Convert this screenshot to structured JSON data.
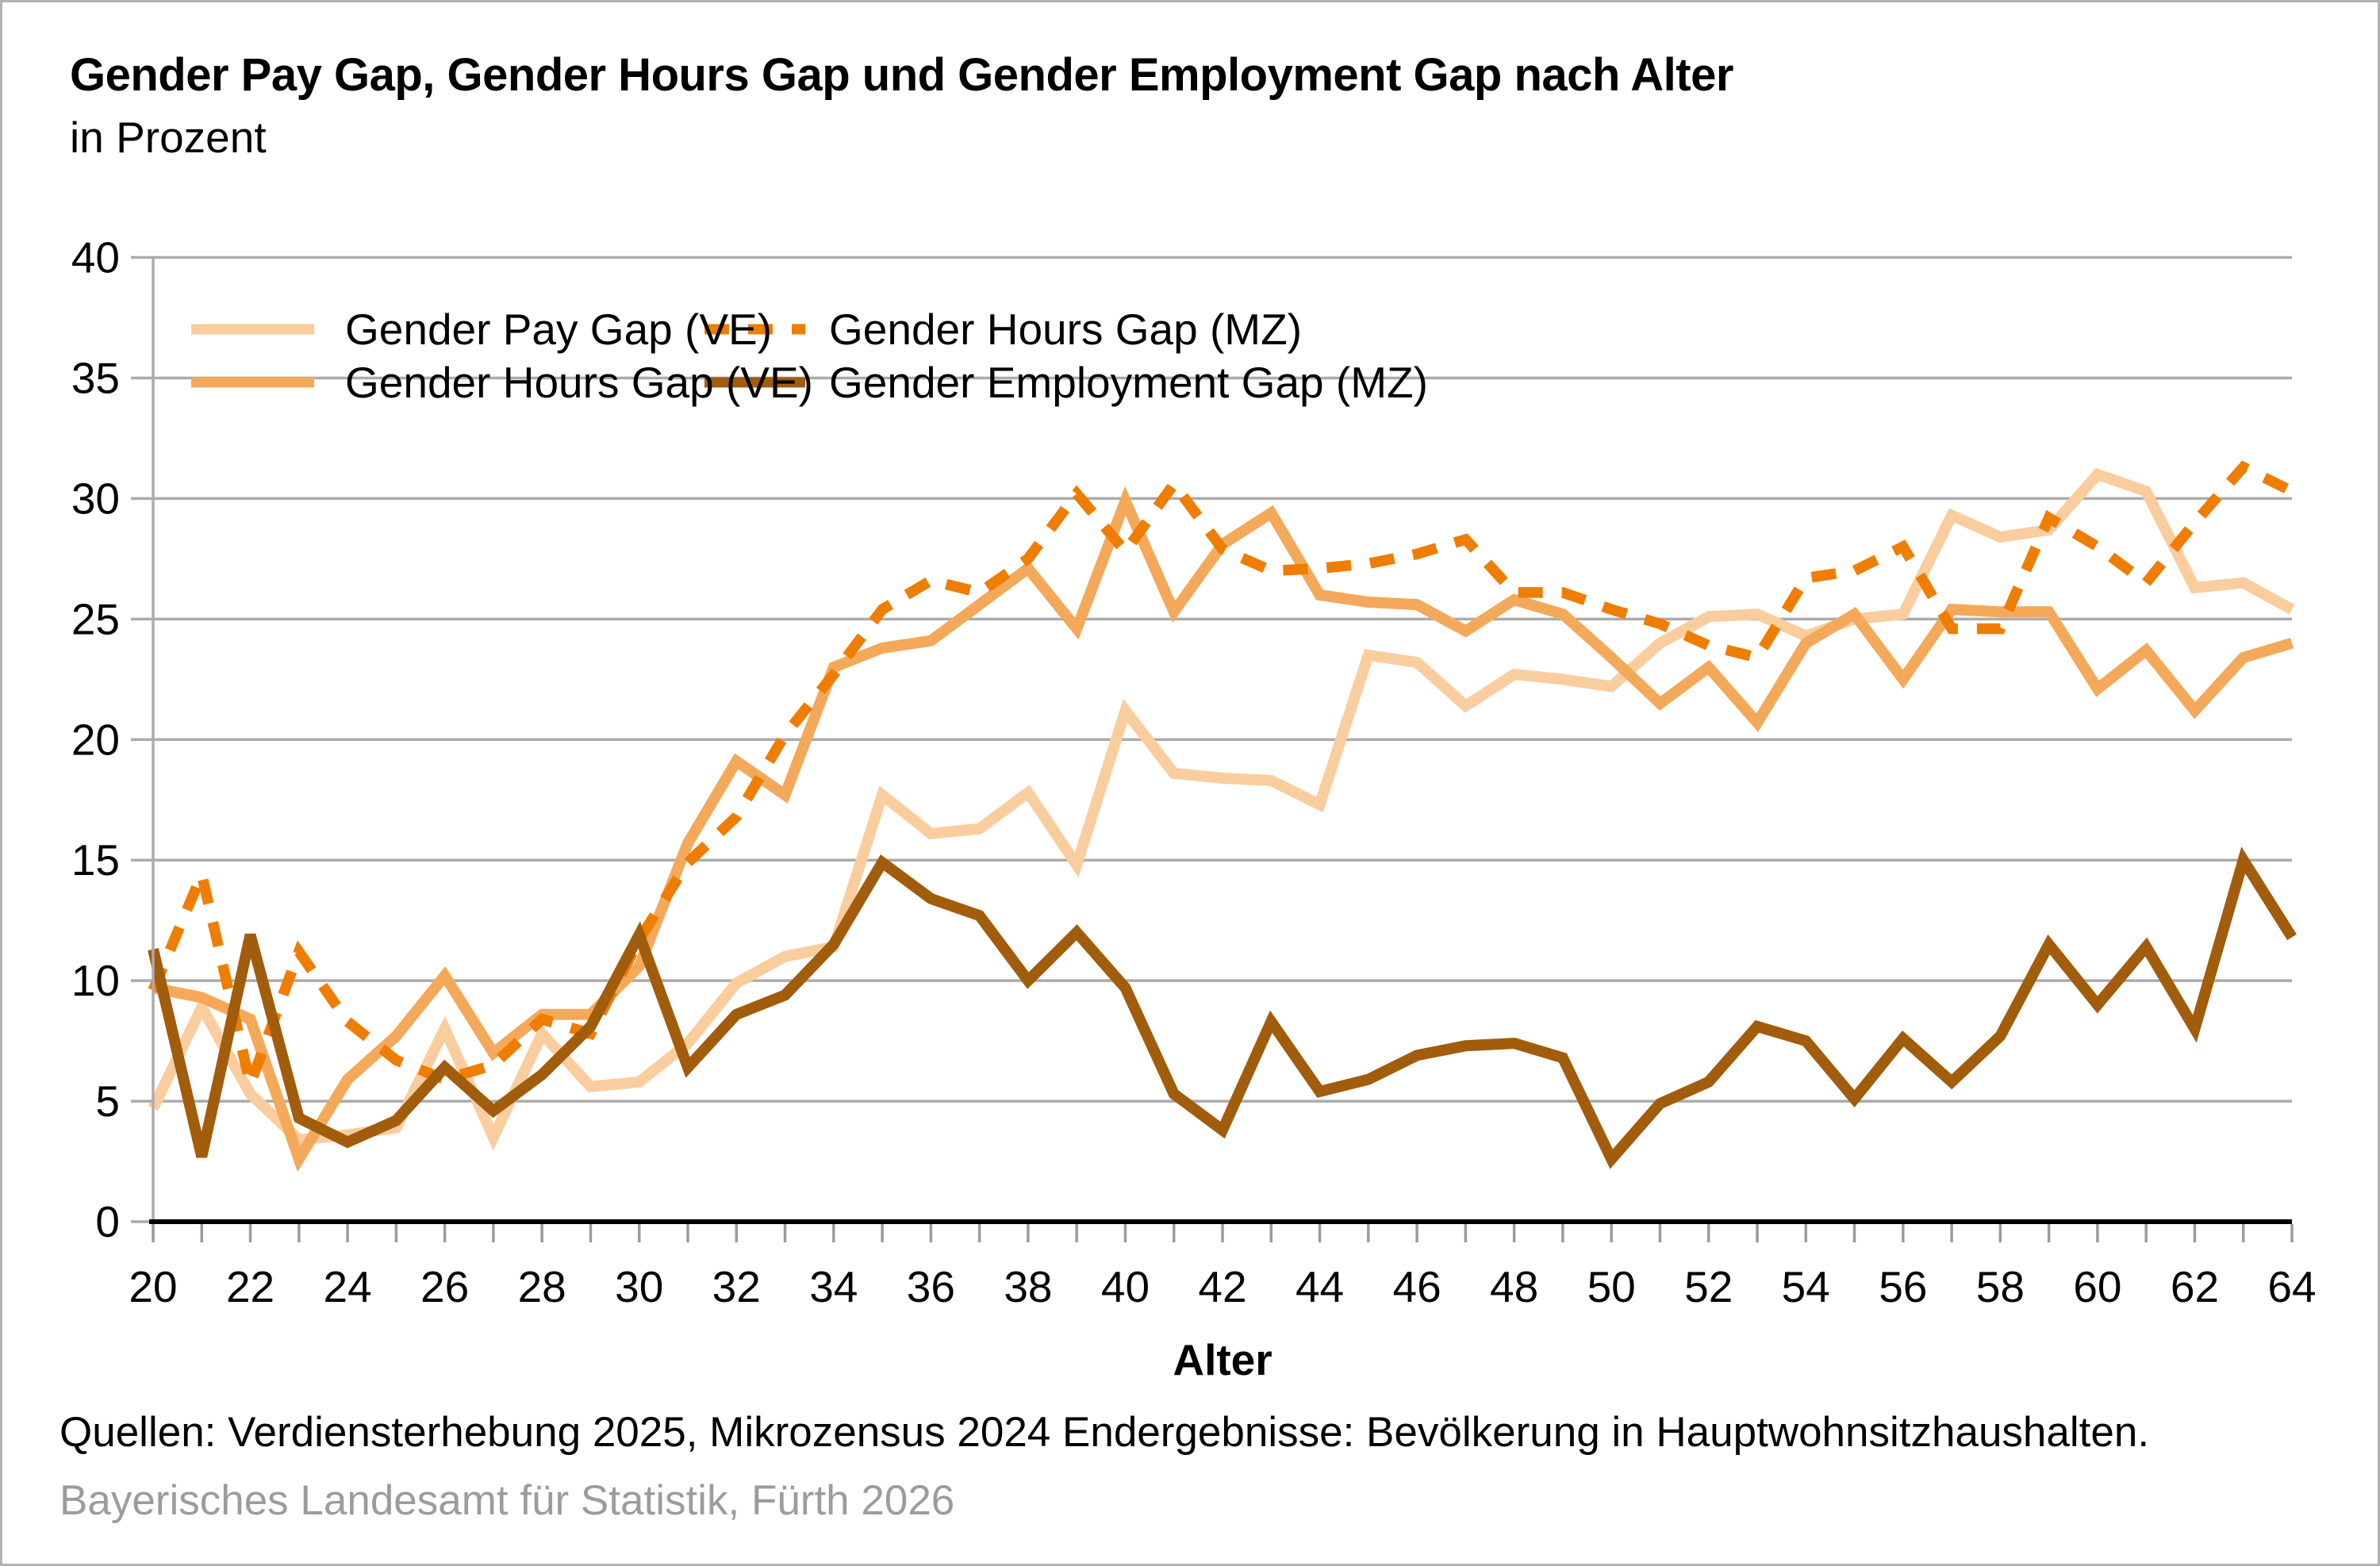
{
  "title": "Gender Pay Gap, Gender Hours Gap und Gender Employment Gap nach Alter",
  "subtitle": "in Prozent",
  "source_line": "Quellen: Verdiensterhebung 2025, Mikrozensus 2024 Endergebnisse: Bevölkerung in Hauptwohnsitzhaushalten.",
  "footer": "Bayerisches Landesamt für Statistik, Fürth 2026",
  "colors": {
    "pay_ve": "#FACD9E",
    "hours_ve": "#F4A85A",
    "hours_mz": "#EE7D00",
    "empl_mz": "#A15C0C",
    "gridline": "#ABABAB",
    "axis": "#000000",
    "tick": "#9B9B9B",
    "footer_gray": "#9C9C9C"
  },
  "chart_data": {
    "type": "line",
    "title": "Gender Pay Gap, Gender Hours Gap und Gender Employment Gap nach Alter",
    "subtitle": "in Prozent",
    "xlabel": "Alter",
    "ylabel": "",
    "xlim": [
      20,
      64
    ],
    "ylim": [
      0,
      40
    ],
    "grid": true,
    "legend_position": "top-left-inside",
    "x": [
      20,
      21,
      22,
      23,
      24,
      25,
      26,
      27,
      28,
      29,
      30,
      31,
      32,
      33,
      34,
      35,
      36,
      37,
      38,
      39,
      40,
      41,
      42,
      43,
      44,
      45,
      46,
      47,
      48,
      49,
      50,
      51,
      52,
      53,
      54,
      55,
      56,
      57,
      58,
      59,
      60,
      61,
      62,
      63,
      64
    ],
    "x_tick_labels": [
      20,
      22,
      24,
      26,
      28,
      30,
      32,
      34,
      36,
      38,
      40,
      42,
      44,
      46,
      48,
      50,
      52,
      54,
      56,
      58,
      60,
      62,
      64
    ],
    "y_tick_labels": [
      0,
      5,
      10,
      15,
      20,
      25,
      30,
      35,
      40
    ],
    "series": [
      {
        "name": "Gender Pay Gap (VE)",
        "style": "solid",
        "color": "#FACD9E",
        "values": [
          4.7,
          8.9,
          5.3,
          3.4,
          3.6,
          3.9,
          8.0,
          3.5,
          7.8,
          5.6,
          5.8,
          7.4,
          9.9,
          11.0,
          11.4,
          17.7,
          16.1,
          16.3,
          17.8,
          14.8,
          21.2,
          18.6,
          18.4,
          18.3,
          17.3,
          23.5,
          23.2,
          21.4,
          22.7,
          22.5,
          22.2,
          24.0,
          25.1,
          25.2,
          24.3,
          25.0,
          25.2,
          29.3,
          28.4,
          28.7,
          31.0,
          30.3,
          26.3,
          26.5,
          25.4
        ]
      },
      {
        "name": "Gender Hours Gap (VE)",
        "style": "solid",
        "color": "#F4A85A",
        "values": [
          9.7,
          9.3,
          8.4,
          2.6,
          5.9,
          7.7,
          10.2,
          7.0,
          8.6,
          8.6,
          10.6,
          15.7,
          19.1,
          17.7,
          23.0,
          23.8,
          24.1,
          25.6,
          27.1,
          24.6,
          29.9,
          25.3,
          28.1,
          29.4,
          26.0,
          25.7,
          25.6,
          24.5,
          25.8,
          25.2,
          23.4,
          21.5,
          23.0,
          20.7,
          24.0,
          25.2,
          22.5,
          25.4,
          25.3,
          25.3,
          22.1,
          23.7,
          21.2,
          23.4,
          24.0
        ]
      },
      {
        "name": "Gender Hours Gap (MZ)",
        "style": "dashed",
        "color": "#EE7D00",
        "values": [
          9.6,
          14.4,
          5.7,
          11.2,
          8.3,
          6.7,
          5.9,
          6.5,
          8.4,
          7.8,
          11.7,
          14.9,
          16.8,
          20.2,
          22.7,
          25.4,
          26.6,
          26.1,
          27.5,
          30.2,
          27.8,
          30.6,
          27.9,
          27.0,
          27.1,
          27.3,
          27.7,
          28.3,
          26.1,
          26.1,
          25.4,
          24.8,
          23.9,
          23.4,
          26.7,
          27.0,
          28.0,
          24.6,
          24.6,
          29.2,
          28.0,
          26.5,
          29.0,
          31.3,
          30.3
        ]
      },
      {
        "name": "Gender Employment Gap (MZ)",
        "style": "solid",
        "color": "#A15C0C",
        "values": [
          11.3,
          2.7,
          11.9,
          4.3,
          3.3,
          4.2,
          6.4,
          4.6,
          6.1,
          8.1,
          11.9,
          6.4,
          8.6,
          9.4,
          11.5,
          14.9,
          13.4,
          12.7,
          10.0,
          12.0,
          9.7,
          5.3,
          3.8,
          8.3,
          5.4,
          5.9,
          6.9,
          7.3,
          7.4,
          6.8,
          2.6,
          4.9,
          5.8,
          8.1,
          7.5,
          5.1,
          7.6,
          5.8,
          7.7,
          11.5,
          9.0,
          11.4,
          8.0,
          15.0,
          11.8
        ]
      }
    ]
  }
}
